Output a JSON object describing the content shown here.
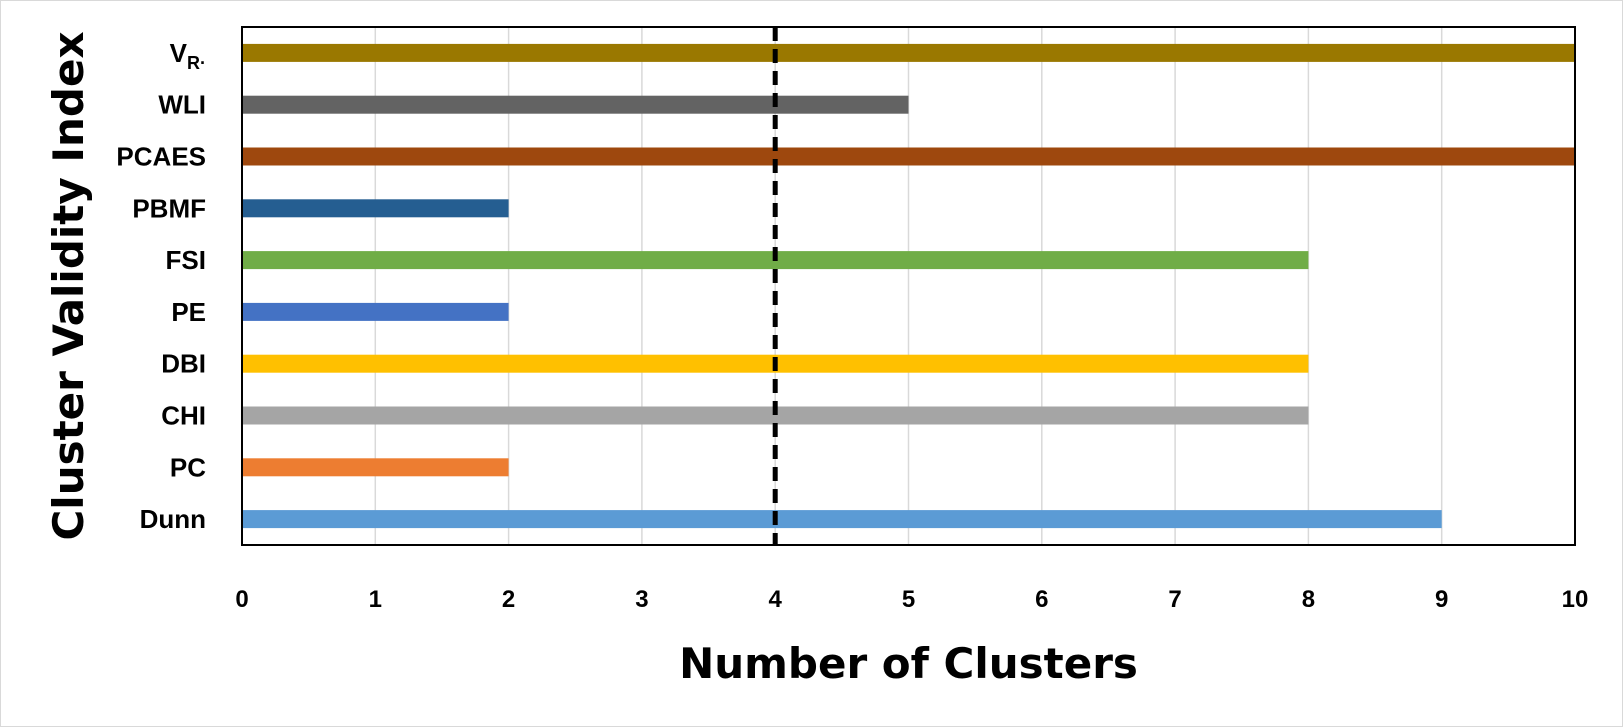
{
  "chart_data": {
    "type": "bar",
    "orientation": "horizontal",
    "xlabel": "Number of Clusters",
    "ylabel": "Cluster Validity Index",
    "xlim": [
      0,
      10
    ],
    "xticks": [
      "0",
      "1",
      "2",
      "3",
      "4",
      "5",
      "6",
      "7",
      "8",
      "9",
      "10"
    ],
    "grid": true,
    "reference_line": {
      "x": 4,
      "style": "dashed",
      "color": "#000000"
    },
    "categories": [
      {
        "label": "V",
        "subscript": "R·",
        "value": 10,
        "color": "#9a7800"
      },
      {
        "label": "WLI",
        "subscript": "",
        "value": 5,
        "color": "#636363"
      },
      {
        "label": "PCAES",
        "subscript": "",
        "value": 10,
        "color": "#9e480e"
      },
      {
        "label": "PBMF",
        "subscript": "",
        "value": 2,
        "color": "#255e91"
      },
      {
        "label": "FSI",
        "subscript": "",
        "value": 8,
        "color": "#70ad47"
      },
      {
        "label": "PE",
        "subscript": "",
        "value": 2,
        "color": "#4472c4"
      },
      {
        "label": "DBI",
        "subscript": "",
        "value": 8,
        "color": "#ffc000"
      },
      {
        "label": "CHI",
        "subscript": "",
        "value": 8,
        "color": "#a5a5a5"
      },
      {
        "label": "PC",
        "subscript": "",
        "value": 2,
        "color": "#ed7d31"
      },
      {
        "label": "Dunn",
        "subscript": "",
        "value": 9,
        "color": "#5b9bd5"
      }
    ]
  }
}
